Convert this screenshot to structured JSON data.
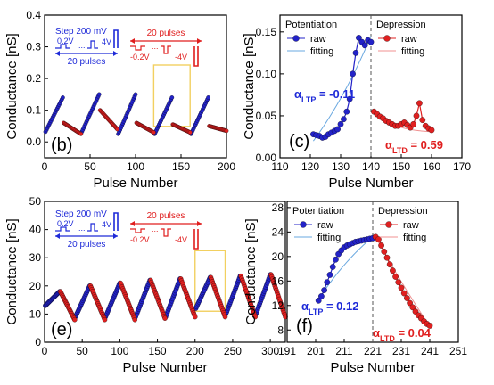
{
  "colors": {
    "raw_ltp": "#2323c8",
    "fit_ltp": "#6aa8e0",
    "raw_ltd": "#e02020",
    "fit_ltd": "#f09090",
    "box": "#f2d060",
    "text_blue": "#1e2ad8",
    "text_red": "#e01e1e"
  },
  "chart_data": [
    {
      "panel": "b",
      "type": "scatter",
      "xlabel": "Pulse Number",
      "ylabel": "Conductance [nS]",
      "xlim": [
        0,
        200
      ],
      "ylim": [
        -0.05,
        0.4
      ],
      "xticks": [
        0,
        50,
        100,
        150,
        200
      ],
      "yticks": [
        0.0,
        0.1,
        0.2,
        0.3,
        0.4
      ],
      "panel_label": "(b)",
      "inset": {
        "ltp_step": "Step 200 mV",
        "ltp_v_start": "0.2V",
        "ltp_dots": "...",
        "ltp_v_end": "4V",
        "ltp_pulses": "20 pulses",
        "ltd_pulses": "20 pulses",
        "ltd_v_start": "-0.2V",
        "ltd_dots": "...",
        "ltd_v_end": "-4V"
      },
      "highlight_x": [
        120,
        160
      ],
      "ltp_cycles": [
        {
          "x_start": 1,
          "x_end": 20,
          "y_start": 0.032,
          "y_end": 0.14
        },
        {
          "x_start": 41,
          "x_end": 60,
          "y_start": 0.032,
          "y_end": 0.15
        },
        {
          "x_start": 81,
          "x_end": 100,
          "y_start": 0.025,
          "y_end": 0.15
        },
        {
          "x_start": 121,
          "x_end": 140,
          "y_start": 0.025,
          "y_end": 0.14
        },
        {
          "x_start": 161,
          "x_end": 180,
          "y_start": 0.025,
          "y_end": 0.14
        }
      ],
      "ltd_cycles": [
        {
          "x_start": 21,
          "x_end": 40,
          "y_start": 0.06,
          "y_end": 0.025
        },
        {
          "x_start": 61,
          "x_end": 80,
          "y_start": 0.1,
          "y_end": 0.04
        },
        {
          "x_start": 101,
          "x_end": 120,
          "y_start": 0.06,
          "y_end": 0.03
        },
        {
          "x_start": 141,
          "x_end": 160,
          "y_start": 0.055,
          "y_end": 0.03
        },
        {
          "x_start": 181,
          "x_end": 200,
          "y_start": 0.05,
          "y_end": 0.035
        }
      ]
    },
    {
      "panel": "c",
      "type": "scatter",
      "xlabel": "Pulse Number",
      "ylabel": "Conductance [nS]",
      "xlim": [
        110,
        170
      ],
      "ylim": [
        0.0,
        0.17
      ],
      "xticks": [
        110,
        120,
        130,
        140,
        150,
        160,
        170
      ],
      "yticks": [
        0.0,
        0.05,
        0.1,
        0.15
      ],
      "panel_label": "(c)",
      "divider_x": 140,
      "legend_left": {
        "title": "Potentiation",
        "raw": "raw",
        "fitting": "fitting"
      },
      "legend_right": {
        "title": "Depression",
        "raw": "raw",
        "fitting": "fitting"
      },
      "alpha_ltp": {
        "sym": "α",
        "sub": "LTP",
        "value": " = -0.11"
      },
      "alpha_ltd": {
        "sym": "α",
        "sub": "LTD",
        "value": " = 0.59"
      },
      "ltp_raw": {
        "x": [
          121,
          122,
          123,
          124,
          125,
          126,
          127,
          128,
          129,
          130,
          131,
          132,
          133,
          134,
          135,
          136,
          137,
          138,
          139,
          140
        ],
        "y": [
          0.028,
          0.027,
          0.026,
          0.024,
          0.025,
          0.028,
          0.03,
          0.032,
          0.034,
          0.04,
          0.046,
          0.055,
          0.07,
          0.1,
          0.125,
          0.143,
          0.138,
          0.134,
          0.14,
          0.138
        ]
      },
      "ltd_raw": {
        "x": [
          141,
          142,
          143,
          144,
          145,
          146,
          147,
          148,
          149,
          150,
          151,
          152,
          153,
          154,
          155,
          156,
          157,
          158,
          159,
          160
        ],
        "y": [
          0.055,
          0.052,
          0.049,
          0.047,
          0.044,
          0.042,
          0.04,
          0.038,
          0.038,
          0.04,
          0.042,
          0.039,
          0.036,
          0.04,
          0.05,
          0.065,
          0.045,
          0.038,
          0.035,
          0.033
        ]
      },
      "ltp_fit": {
        "x": [
          121,
          140
        ],
        "y": [
          0.02,
          0.145
        ],
        "alpha": -0.11
      },
      "ltd_fit": {
        "x": [
          141,
          160
        ],
        "y": [
          0.056,
          0.031
        ],
        "alpha": 0.59
      }
    },
    {
      "panel": "e",
      "type": "scatter",
      "xlabel": "Pulse Number",
      "ylabel": "Conductance [nS]",
      "xlim": [
        0,
        320
      ],
      "ylim": [
        0,
        50
      ],
      "xticks": [
        0,
        50,
        100,
        150,
        200,
        250,
        300
      ],
      "yticks": [
        0,
        10,
        20,
        30,
        40,
        50
      ],
      "panel_label": "(e)",
      "inset": {
        "ltp_step": "Step 200 mV",
        "ltp_v_start": "0.2V",
        "ltp_dots": "...",
        "ltp_v_end": "4V",
        "ltp_pulses": "20 pulses",
        "ltd_pulses": "20 pulses",
        "ltd_v_start": "-0.2V",
        "ltd_dots": "...",
        "ltd_v_end": "-4V"
      },
      "highlight_x": [
        200,
        240
      ],
      "ltp_cycles": [
        {
          "x_start": 1,
          "x_end": 20,
          "y_start": 13,
          "y_end": 18
        },
        {
          "x_start": 41,
          "x_end": 60,
          "y_start": 9,
          "y_end": 20
        },
        {
          "x_start": 81,
          "x_end": 100,
          "y_start": 9,
          "y_end": 21
        },
        {
          "x_start": 121,
          "x_end": 140,
          "y_start": 9,
          "y_end": 22
        },
        {
          "x_start": 161,
          "x_end": 180,
          "y_start": 9,
          "y_end": 22.5
        },
        {
          "x_start": 201,
          "x_end": 220,
          "y_start": 12,
          "y_end": 23
        },
        {
          "x_start": 241,
          "x_end": 260,
          "y_start": 10,
          "y_end": 23.5
        },
        {
          "x_start": 281,
          "x_end": 300,
          "y_start": 10,
          "y_end": 24
        }
      ],
      "ltd_cycles": [
        {
          "x_start": 21,
          "x_end": 40,
          "y_start": 18,
          "y_end": 8
        },
        {
          "x_start": 61,
          "x_end": 80,
          "y_start": 20,
          "y_end": 8
        },
        {
          "x_start": 101,
          "x_end": 120,
          "y_start": 21,
          "y_end": 8
        },
        {
          "x_start": 141,
          "x_end": 160,
          "y_start": 22,
          "y_end": 8.5
        },
        {
          "x_start": 181,
          "x_end": 200,
          "y_start": 22.5,
          "y_end": 9
        },
        {
          "x_start": 221,
          "x_end": 240,
          "y_start": 23,
          "y_end": 9
        },
        {
          "x_start": 261,
          "x_end": 280,
          "y_start": 23.5,
          "y_end": 9
        },
        {
          "x_start": 301,
          "x_end": 320,
          "y_start": 24,
          "y_end": 9
        }
      ]
    },
    {
      "panel": "f",
      "type": "scatter",
      "xlabel": "Pulse Number",
      "ylabel": "Conductance [nS]",
      "xlim": [
        191,
        251
      ],
      "ylim": [
        6,
        29
      ],
      "xticks": [
        191,
        201,
        211,
        221,
        231,
        241,
        251
      ],
      "yticks": [
        8,
        12,
        16,
        20,
        24,
        28
      ],
      "panel_label": "(f)",
      "divider_x": 221,
      "legend_left": {
        "title": "Potentiation",
        "raw": "raw",
        "fitting": "fitting"
      },
      "legend_right": {
        "title": "Depression",
        "raw": "raw",
        "fitting": "fitting"
      },
      "alpha_ltp": {
        "sym": "α",
        "sub": "LTP",
        "value": " = 0.12"
      },
      "alpha_ltd": {
        "sym": "α",
        "sub": "LTD",
        "value": " = 0.04"
      },
      "ltp_raw": {
        "x": [
          202,
          203,
          204,
          205,
          206,
          207,
          208,
          209,
          210,
          211,
          212,
          213,
          214,
          215,
          216,
          217,
          218,
          219,
          220,
          221
        ],
        "y": [
          12.8,
          13.5,
          14.5,
          15.8,
          17,
          18.3,
          19.5,
          20.4,
          21,
          21.5,
          21.8,
          22,
          22.2,
          22.4,
          22.5,
          22.6,
          22.7,
          22.8,
          22.9,
          23
        ]
      },
      "ltd_raw": {
        "x": [
          222,
          223,
          224,
          225,
          226,
          227,
          228,
          229,
          230,
          231,
          232,
          233,
          234,
          235,
          236,
          237,
          238,
          239,
          240,
          241
        ],
        "y": [
          23.2,
          22.8,
          21.8,
          20.8,
          19.8,
          18.7,
          17.7,
          16.7,
          15.8,
          14.9,
          14,
          13.2,
          12.4,
          11.7,
          11,
          10.4,
          9.9,
          9.4,
          9,
          8.7
        ]
      },
      "ltp_fit": {
        "x": [
          202,
          221
        ],
        "y": [
          13,
          23.2
        ],
        "alpha": 0.12
      },
      "ltd_fit": {
        "x": [
          222,
          241
        ],
        "y": [
          23.2,
          8.6
        ],
        "alpha": 0.04
      }
    }
  ]
}
